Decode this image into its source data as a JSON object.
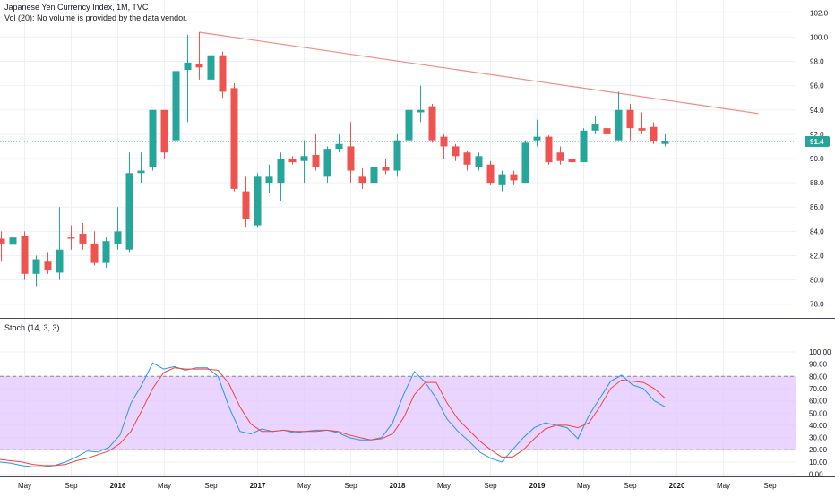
{
  "header": {
    "title": "Japanese Yen Currency Index, 1M, TVC",
    "volume_note": "Vol (20): No volume is provided by the data vendor."
  },
  "last_price_label": "91.4",
  "colors": {
    "up": "#26a69a",
    "down": "#ef5350",
    "trendline": "#f28b82",
    "price_line": "#26a69a",
    "stoch_k": "#2196f3",
    "stoch_d": "#f44336",
    "stoch_band": "#e1c7ff",
    "grid": "#eef0f3",
    "axis_text": "#131722"
  },
  "chart_data": [
    {
      "type": "candlestick",
      "title": "Japanese Yen Currency Index, 1M, TVC",
      "ylim": [
        77.5,
        102.5
      ],
      "y_ticks": [
        "78.0",
        "80.0",
        "82.0",
        "84.0",
        "86.0",
        "88.0",
        "90.0",
        "92.0",
        "94.0",
        "96.0",
        "98.0",
        "100.0",
        "102.0"
      ],
      "x_tick_labels": [
        "May",
        "Sep",
        "2016",
        "May",
        "Sep",
        "2017",
        "May",
        "Sep",
        "2018",
        "May",
        "Sep",
        "2019",
        "May",
        "Sep",
        "2020",
        "May",
        "Sep"
      ],
      "x_tick_months": [
        -8,
        -4,
        0,
        4,
        8,
        12,
        16,
        20,
        24,
        28,
        32,
        36,
        40,
        44,
        48,
        52,
        56
      ],
      "x_month_range": [
        -10,
        57
      ],
      "grid": true,
      "candles": [
        {
          "m": -10,
          "o": 83.4,
          "h": 84.0,
          "l": 81.5,
          "c": 83.0
        },
        {
          "m": -9,
          "o": 82.9,
          "h": 84.0,
          "l": 82.0,
          "c": 83.5
        },
        {
          "m": -8,
          "o": 83.6,
          "h": 84.0,
          "l": 80.0,
          "c": 80.5
        },
        {
          "m": -7,
          "o": 80.5,
          "h": 82.0,
          "l": 79.5,
          "c": 81.7
        },
        {
          "m": -6,
          "o": 81.5,
          "h": 82.3,
          "l": 80.5,
          "c": 80.8
        },
        {
          "m": -5,
          "o": 80.6,
          "h": 86.0,
          "l": 80.0,
          "c": 82.5
        },
        {
          "m": -4,
          "o": 83.5,
          "h": 84.5,
          "l": 82.5,
          "c": 83.4
        },
        {
          "m": -3,
          "o": 83.8,
          "h": 84.7,
          "l": 82.5,
          "c": 83.0
        },
        {
          "m": -2,
          "o": 83.0,
          "h": 84.0,
          "l": 81.2,
          "c": 81.4
        },
        {
          "m": -1,
          "o": 81.4,
          "h": 83.5,
          "l": 81.0,
          "c": 83.2
        },
        {
          "m": 0,
          "o": 83.0,
          "h": 86.0,
          "l": 82.5,
          "c": 84.0
        },
        {
          "m": 1,
          "o": 82.5,
          "h": 90.5,
          "l": 82.3,
          "c": 88.8
        },
        {
          "m": 2,
          "o": 88.8,
          "h": 90.5,
          "l": 88.0,
          "c": 89.0
        },
        {
          "m": 3,
          "o": 89.3,
          "h": 94.0,
          "l": 89.0,
          "c": 94.0
        },
        {
          "m": 4,
          "o": 94.0,
          "h": 94.0,
          "l": 90.0,
          "c": 90.5
        },
        {
          "m": 5,
          "o": 91.5,
          "h": 99.0,
          "l": 91.0,
          "c": 97.2
        },
        {
          "m": 6,
          "o": 97.3,
          "h": 100.2,
          "l": 93.0,
          "c": 97.9
        },
        {
          "m": 7,
          "o": 97.8,
          "h": 100.4,
          "l": 96.5,
          "c": 97.5
        },
        {
          "m": 8,
          "o": 96.5,
          "h": 99.0,
          "l": 96.0,
          "c": 98.5
        },
        {
          "m": 9,
          "o": 98.5,
          "h": 98.8,
          "l": 95.0,
          "c": 95.5
        },
        {
          "m": 10,
          "o": 95.8,
          "h": 96.2,
          "l": 87.3,
          "c": 87.5
        },
        {
          "m": 11,
          "o": 87.3,
          "h": 88.5,
          "l": 84.3,
          "c": 85.0
        },
        {
          "m": 12,
          "o": 84.5,
          "h": 88.8,
          "l": 84.3,
          "c": 88.5
        },
        {
          "m": 13,
          "o": 88.0,
          "h": 89.5,
          "l": 87.2,
          "c": 88.5
        },
        {
          "m": 14,
          "o": 88.0,
          "h": 90.5,
          "l": 86.5,
          "c": 90.0
        },
        {
          "m": 15,
          "o": 90.0,
          "h": 90.2,
          "l": 89.5,
          "c": 89.7
        },
        {
          "m": 16,
          "o": 89.8,
          "h": 91.5,
          "l": 88.0,
          "c": 90.2
        },
        {
          "m": 17,
          "o": 90.3,
          "h": 92.0,
          "l": 89.0,
          "c": 89.3
        },
        {
          "m": 18,
          "o": 88.5,
          "h": 91.0,
          "l": 88.0,
          "c": 90.8
        },
        {
          "m": 19,
          "o": 90.8,
          "h": 92.0,
          "l": 90.5,
          "c": 91.2
        },
        {
          "m": 20,
          "o": 91.0,
          "h": 93.0,
          "l": 88.0,
          "c": 89.0
        },
        {
          "m": 21,
          "o": 88.5,
          "h": 89.2,
          "l": 87.5,
          "c": 88.0
        },
        {
          "m": 22,
          "o": 88.0,
          "h": 90.0,
          "l": 87.5,
          "c": 89.3
        },
        {
          "m": 23,
          "o": 89.3,
          "h": 90.0,
          "l": 88.7,
          "c": 89.0
        },
        {
          "m": 24,
          "o": 89.0,
          "h": 92.0,
          "l": 88.5,
          "c": 91.5
        },
        {
          "m": 25,
          "o": 91.5,
          "h": 94.5,
          "l": 91.0,
          "c": 94.0
        },
        {
          "m": 26,
          "o": 93.8,
          "h": 96.0,
          "l": 93.0,
          "c": 94.0
        },
        {
          "m": 27,
          "o": 94.3,
          "h": 94.5,
          "l": 91.3,
          "c": 91.5
        },
        {
          "m": 28,
          "o": 91.8,
          "h": 92.0,
          "l": 90.0,
          "c": 91.0
        },
        {
          "m": 29,
          "o": 91.0,
          "h": 91.2,
          "l": 89.8,
          "c": 90.2
        },
        {
          "m": 30,
          "o": 90.5,
          "h": 90.6,
          "l": 89.0,
          "c": 89.5
        },
        {
          "m": 31,
          "o": 89.3,
          "h": 90.5,
          "l": 89.0,
          "c": 90.2
        },
        {
          "m": 32,
          "o": 89.5,
          "h": 89.8,
          "l": 87.8,
          "c": 88.0
        },
        {
          "m": 33,
          "o": 87.8,
          "h": 89.0,
          "l": 87.3,
          "c": 88.7
        },
        {
          "m": 34,
          "o": 88.7,
          "h": 89.0,
          "l": 87.8,
          "c": 88.2
        },
        {
          "m": 35,
          "o": 88.0,
          "h": 91.5,
          "l": 88.0,
          "c": 91.3
        },
        {
          "m": 36,
          "o": 91.5,
          "h": 93.2,
          "l": 91.0,
          "c": 91.8
        },
        {
          "m": 37,
          "o": 91.8,
          "h": 91.9,
          "l": 89.5,
          "c": 89.7
        },
        {
          "m": 38,
          "o": 90.5,
          "h": 91.0,
          "l": 89.5,
          "c": 89.8
        },
        {
          "m": 39,
          "o": 90.0,
          "h": 90.3,
          "l": 89.3,
          "c": 89.7
        },
        {
          "m": 40,
          "o": 89.7,
          "h": 92.5,
          "l": 89.7,
          "c": 92.3
        },
        {
          "m": 41,
          "o": 92.3,
          "h": 93.5,
          "l": 92.0,
          "c": 92.8
        },
        {
          "m": 42,
          "o": 92.5,
          "h": 94.0,
          "l": 91.8,
          "c": 92.0
        },
        {
          "m": 43,
          "o": 91.5,
          "h": 95.5,
          "l": 91.5,
          "c": 94.0
        },
        {
          "m": 44,
          "o": 94.0,
          "h": 94.5,
          "l": 91.5,
          "c": 92.5
        },
        {
          "m": 45,
          "o": 92.5,
          "h": 93.8,
          "l": 92.0,
          "c": 92.3
        },
        {
          "m": 46,
          "o": 92.6,
          "h": 93.0,
          "l": 91.2,
          "c": 91.4
        },
        {
          "m": 47,
          "o": 91.2,
          "h": 92.0,
          "l": 91.0,
          "c": 91.4
        }
      ],
      "trendline": {
        "x1": 7,
        "y1": 100.4,
        "x2": 55,
        "y2": 93.7
      },
      "last_price": 91.4
    },
    {
      "type": "line",
      "title": "Stoch (14, 3, 3)",
      "ylim": [
        -2,
        102
      ],
      "y_ticks": [
        "0.00",
        "10.00",
        "20.00",
        "30.00",
        "40.00",
        "50.00",
        "60.00",
        "70.00",
        "80.00",
        "90.00",
        "100.00"
      ],
      "band": [
        20,
        80
      ],
      "x_month_range": [
        -10,
        57
      ],
      "series": [
        {
          "values": [
            10,
            9,
            7,
            6,
            6,
            7,
            10,
            14,
            19,
            18,
            22,
            32,
            58,
            73,
            91,
            86,
            88,
            85,
            87,
            87,
            80,
            55,
            35,
            33,
            37,
            35,
            36,
            34,
            35,
            36,
            36,
            34,
            30,
            28,
            28,
            30,
            42,
            65,
            84,
            75,
            62,
            45,
            35,
            27,
            18,
            13,
            10,
            20,
            30,
            38,
            42,
            40,
            38,
            29,
            48,
            62,
            76,
            81,
            73,
            70,
            60,
            55
          ],
          "m_start": -14
        },
        {
          "values": [
            12,
            11,
            10,
            8,
            7,
            7,
            8,
            11,
            13,
            16,
            19,
            25,
            35,
            52,
            70,
            83,
            87,
            86,
            86,
            86,
            85,
            74,
            55,
            41,
            35,
            35,
            36,
            35,
            35,
            35,
            36,
            35,
            32,
            30,
            28,
            29,
            33,
            46,
            65,
            75,
            75,
            58,
            45,
            36,
            27,
            20,
            14,
            14,
            20,
            29,
            37,
            40,
            40,
            38,
            42,
            55,
            70,
            77,
            76,
            75,
            70,
            62
          ],
          "m_start": -14
        }
      ]
    }
  ]
}
